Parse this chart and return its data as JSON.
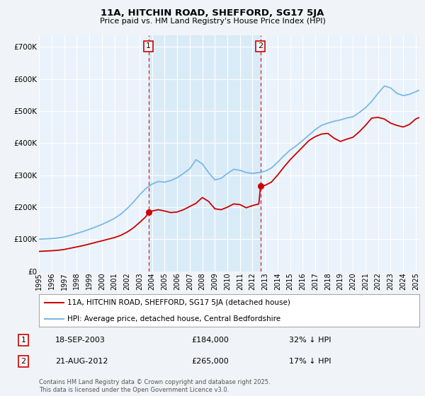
{
  "title": "11A, HITCHIN ROAD, SHEFFORD, SG17 5JA",
  "subtitle": "Price paid vs. HM Land Registry's House Price Index (HPI)",
  "legend_line1": "11A, HITCHIN ROAD, SHEFFORD, SG17 5JA (detached house)",
  "legend_line2": "HPI: Average price, detached house, Central Bedfordshire",
  "footer": "Contains HM Land Registry data © Crown copyright and database right 2025.\nThis data is licensed under the Open Government Licence v3.0.",
  "sale1_date": "18-SEP-2003",
  "sale1_price": "£184,000",
  "sale1_hpi": "32% ↓ HPI",
  "sale1_x": 2003.72,
  "sale1_y": 184000,
  "sale2_date": "21-AUG-2012",
  "sale2_price": "£265,000",
  "sale2_hpi": "17% ↓ HPI",
  "sale2_x": 2012.64,
  "sale2_y": 265000,
  "ylabel_ticks": [
    "£0",
    "£100K",
    "£200K",
    "£300K",
    "£400K",
    "£500K",
    "£600K",
    "£700K"
  ],
  "ytick_vals": [
    0,
    100000,
    200000,
    300000,
    400000,
    500000,
    600000,
    700000
  ],
  "ylim": [
    0,
    735000
  ],
  "xlim_start": 1995,
  "xlim_end": 2025.3,
  "hpi_color": "#7ab8e8",
  "price_color": "#cc0000",
  "dline_color": "#cc0000",
  "bg_color": "#f0f4f8",
  "plot_bg": "#eaf3fb",
  "highlight_bg": "#ddeeff",
  "grid_color": "#ffffff",
  "hpi_data": [
    [
      1995.0,
      100000
    ],
    [
      1995.5,
      101000
    ],
    [
      1996.0,
      102000
    ],
    [
      1996.5,
      104000
    ],
    [
      1997.0,
      107000
    ],
    [
      1997.5,
      112000
    ],
    [
      1998.0,
      118000
    ],
    [
      1998.5,
      124000
    ],
    [
      1999.0,
      131000
    ],
    [
      1999.5,
      138000
    ],
    [
      2000.0,
      146000
    ],
    [
      2000.5,
      155000
    ],
    [
      2001.0,
      165000
    ],
    [
      2001.5,
      178000
    ],
    [
      2002.0,
      195000
    ],
    [
      2002.5,
      215000
    ],
    [
      2003.0,
      238000
    ],
    [
      2003.5,
      258000
    ],
    [
      2004.0,
      272000
    ],
    [
      2004.5,
      280000
    ],
    [
      2005.0,
      278000
    ],
    [
      2005.5,
      283000
    ],
    [
      2006.0,
      292000
    ],
    [
      2006.5,
      305000
    ],
    [
      2007.0,
      320000
    ],
    [
      2007.5,
      348000
    ],
    [
      2008.0,
      335000
    ],
    [
      2008.5,
      308000
    ],
    [
      2009.0,
      285000
    ],
    [
      2009.5,
      290000
    ],
    [
      2010.0,
      305000
    ],
    [
      2010.5,
      318000
    ],
    [
      2011.0,
      315000
    ],
    [
      2011.5,
      308000
    ],
    [
      2012.0,
      305000
    ],
    [
      2012.5,
      308000
    ],
    [
      2013.0,
      312000
    ],
    [
      2013.5,
      322000
    ],
    [
      2014.0,
      340000
    ],
    [
      2014.5,
      360000
    ],
    [
      2015.0,
      378000
    ],
    [
      2015.5,
      392000
    ],
    [
      2016.0,
      408000
    ],
    [
      2016.5,
      425000
    ],
    [
      2017.0,
      442000
    ],
    [
      2017.5,
      455000
    ],
    [
      2018.0,
      462000
    ],
    [
      2018.5,
      468000
    ],
    [
      2019.0,
      472000
    ],
    [
      2019.5,
      478000
    ],
    [
      2020.0,
      482000
    ],
    [
      2020.5,
      495000
    ],
    [
      2021.0,
      510000
    ],
    [
      2021.5,
      530000
    ],
    [
      2022.0,
      555000
    ],
    [
      2022.5,
      578000
    ],
    [
      2023.0,
      572000
    ],
    [
      2023.5,
      555000
    ],
    [
      2024.0,
      548000
    ],
    [
      2024.5,
      552000
    ],
    [
      2025.0,
      560000
    ],
    [
      2025.3,
      565000
    ]
  ],
  "price_data": [
    [
      1995.0,
      62000
    ],
    [
      1995.5,
      63000
    ],
    [
      1996.0,
      64000
    ],
    [
      1996.5,
      65500
    ],
    [
      1997.0,
      68000
    ],
    [
      1997.5,
      72000
    ],
    [
      1998.0,
      76000
    ],
    [
      1998.5,
      80000
    ],
    [
      1999.0,
      85000
    ],
    [
      1999.5,
      90000
    ],
    [
      2000.0,
      95000
    ],
    [
      2000.5,
      100000
    ],
    [
      2001.0,
      105000
    ],
    [
      2001.5,
      112000
    ],
    [
      2002.0,
      122000
    ],
    [
      2002.5,
      135000
    ],
    [
      2003.0,
      152000
    ],
    [
      2003.5,
      170000
    ],
    [
      2003.72,
      184000
    ],
    [
      2004.0,
      188000
    ],
    [
      2004.5,
      192000
    ],
    [
      2005.0,
      188000
    ],
    [
      2005.5,
      183000
    ],
    [
      2006.0,
      185000
    ],
    [
      2006.5,
      192000
    ],
    [
      2007.0,
      202000
    ],
    [
      2007.5,
      212000
    ],
    [
      2008.0,
      230000
    ],
    [
      2008.5,
      218000
    ],
    [
      2009.0,
      195000
    ],
    [
      2009.5,
      192000
    ],
    [
      2010.0,
      200000
    ],
    [
      2010.5,
      210000
    ],
    [
      2011.0,
      208000
    ],
    [
      2011.5,
      198000
    ],
    [
      2012.0,
      205000
    ],
    [
      2012.5,
      210000
    ],
    [
      2012.64,
      265000
    ],
    [
      2013.0,
      268000
    ],
    [
      2013.5,
      278000
    ],
    [
      2014.0,
      300000
    ],
    [
      2014.5,
      325000
    ],
    [
      2015.0,
      348000
    ],
    [
      2015.5,
      368000
    ],
    [
      2016.0,
      388000
    ],
    [
      2016.5,
      408000
    ],
    [
      2017.0,
      420000
    ],
    [
      2017.5,
      428000
    ],
    [
      2018.0,
      430000
    ],
    [
      2018.5,
      415000
    ],
    [
      2019.0,
      405000
    ],
    [
      2019.5,
      412000
    ],
    [
      2020.0,
      418000
    ],
    [
      2020.5,
      435000
    ],
    [
      2021.0,
      455000
    ],
    [
      2021.5,
      478000
    ],
    [
      2022.0,
      480000
    ],
    [
      2022.5,
      475000
    ],
    [
      2023.0,
      462000
    ],
    [
      2023.5,
      455000
    ],
    [
      2024.0,
      450000
    ],
    [
      2024.5,
      458000
    ],
    [
      2025.0,
      475000
    ],
    [
      2025.3,
      480000
    ]
  ]
}
